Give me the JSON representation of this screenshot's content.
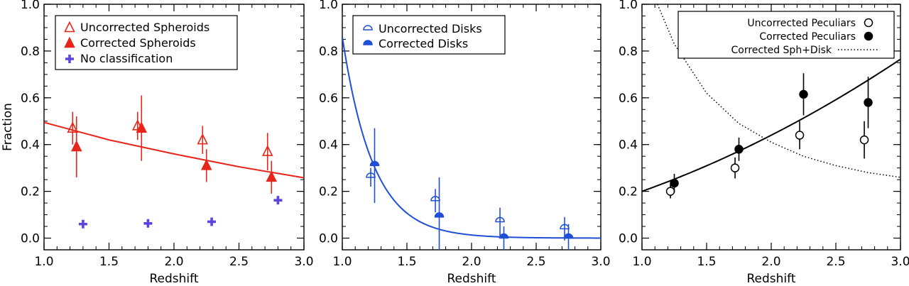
{
  "colors": {
    "spheroid": "#e8251a",
    "disk": "#1f4fd6",
    "noclass": "#5a45e0",
    "peculiar": "#000000"
  },
  "chart_data": [
    {
      "type": "scatter",
      "xlabel": "Redshift",
      "ylabel": "Fraction",
      "xlim": [
        1.0,
        3.0
      ],
      "ylim": [
        -0.05,
        1.0
      ],
      "xticks": [
        "1.0",
        "1.5",
        "2.0",
        "2.5",
        "3.0"
      ],
      "yticks": [
        "0.0",
        "0.2",
        "0.4",
        "0.6",
        "0.8",
        "1.0"
      ],
      "legend_position": "top-left",
      "series": [
        {
          "name": "Uncorrected Spheroids",
          "marker": "triangle-open",
          "color_key": "spheroid",
          "points": [
            {
              "x": 1.22,
              "y": 0.47,
              "err": 0.07
            },
            {
              "x": 1.72,
              "y": 0.48,
              "err": 0.06
            },
            {
              "x": 2.22,
              "y": 0.42,
              "err": 0.06
            },
            {
              "x": 2.72,
              "y": 0.37,
              "err": 0.08
            }
          ]
        },
        {
          "name": "Corrected Spheroids",
          "marker": "triangle-filled",
          "color_key": "spheroid",
          "points": [
            {
              "x": 1.25,
              "y": 0.39,
              "err": 0.13
            },
            {
              "x": 1.75,
              "y": 0.47,
              "err": 0.14
            },
            {
              "x": 2.25,
              "y": 0.31,
              "err": 0.07
            },
            {
              "x": 2.75,
              "y": 0.26,
              "err": 0.07
            }
          ]
        },
        {
          "name": "No classification",
          "marker": "plus",
          "color_key": "noclass",
          "points": [
            {
              "x": 1.3,
              "y": 0.06
            },
            {
              "x": 1.8,
              "y": 0.063
            },
            {
              "x": 2.29,
              "y": 0.07
            },
            {
              "x": 2.8,
              "y": 0.162
            }
          ]
        }
      ],
      "fit": {
        "color_key": "spheroid",
        "points": [
          [
            1.0,
            0.495
          ],
          [
            1.5,
            0.42
          ],
          [
            2.0,
            0.36
          ],
          [
            2.5,
            0.305
          ],
          [
            3.0,
            0.258
          ]
        ]
      }
    },
    {
      "type": "scatter",
      "xlabel": "Redshift",
      "ylabel": "",
      "xlim": [
        1.0,
        3.0
      ],
      "ylim": [
        -0.05,
        1.0
      ],
      "xticks": [
        "1.0",
        "1.5",
        "2.0",
        "2.5",
        "3.0"
      ],
      "yticks": [
        "0.0",
        "0.2",
        "0.4",
        "0.6",
        "0.8",
        "1.0"
      ],
      "legend_position": "top-left",
      "series": [
        {
          "name": "Uncorrected Disks",
          "marker": "halfcircle-open",
          "color_key": "disk",
          "points": [
            {
              "x": 1.22,
              "y": 0.26,
              "err": 0.04
            },
            {
              "x": 1.72,
              "y": 0.16,
              "err": 0.05
            },
            {
              "x": 2.22,
              "y": 0.07,
              "err": 0.06
            },
            {
              "x": 2.72,
              "y": 0.04,
              "err": 0.05
            }
          ]
        },
        {
          "name": "Corrected Disks",
          "marker": "halfcircle-filled",
          "color_key": "disk",
          "points": [
            {
              "x": 1.25,
              "y": 0.31,
              "err": 0.16
            },
            {
              "x": 1.75,
              "y": 0.09,
              "err": 0.17
            },
            {
              "x": 2.25,
              "y": 0.0,
              "err": 0.05
            },
            {
              "x": 2.75,
              "y": 0.0,
              "err": 0.06
            }
          ]
        }
      ],
      "fit": {
        "color_key": "disk",
        "model": "exp",
        "a": 0.86,
        "k": 4.17,
        "x0": 1.0
      }
    },
    {
      "type": "scatter",
      "xlabel": "Redshift",
      "ylabel": "",
      "xlim": [
        1.0,
        3.0
      ],
      "ylim": [
        -0.05,
        1.0
      ],
      "xticks": [
        "1.0",
        "1.5",
        "2.0",
        "2.5",
        "3.0"
      ],
      "yticks": [
        "0.0",
        "0.2",
        "0.4",
        "0.6",
        "0.8",
        "1.0"
      ],
      "legend_position": "top-right",
      "series": [
        {
          "name": "Uncorrected Peculiars",
          "marker": "circle-open",
          "color_key": "peculiar",
          "points": [
            {
              "x": 1.22,
              "y": 0.2,
              "err": 0.03
            },
            {
              "x": 1.72,
              "y": 0.3,
              "err": 0.045
            },
            {
              "x": 2.22,
              "y": 0.44,
              "err": 0.06
            },
            {
              "x": 2.72,
              "y": 0.42,
              "err": 0.08
            }
          ]
        },
        {
          "name": "Corrected Peculiars",
          "marker": "circle-filled",
          "color_key": "peculiar",
          "points": [
            {
              "x": 1.25,
              "y": 0.235,
              "err": 0.04
            },
            {
              "x": 1.75,
              "y": 0.38,
              "err": 0.05
            },
            {
              "x": 2.25,
              "y": 0.615,
              "err": 0.09
            },
            {
              "x": 2.75,
              "y": 0.58,
              "err": 0.11
            }
          ]
        }
      ],
      "fit": {
        "color_key": "peculiar",
        "model": "quad",
        "points": [
          [
            1.0,
            0.2
          ],
          [
            2.0,
            0.44
          ],
          [
            3.0,
            0.765
          ]
        ]
      },
      "extra_line": {
        "name": "Corrected Sph+Disk",
        "style": "dotted",
        "points": [
          [
            1.12,
            1.0
          ],
          [
            1.25,
            0.83
          ],
          [
            1.5,
            0.62
          ],
          [
            1.75,
            0.49
          ],
          [
            2.0,
            0.41
          ],
          [
            2.25,
            0.35
          ],
          [
            2.5,
            0.31
          ],
          [
            2.75,
            0.28
          ],
          [
            3.0,
            0.26
          ]
        ]
      }
    }
  ]
}
